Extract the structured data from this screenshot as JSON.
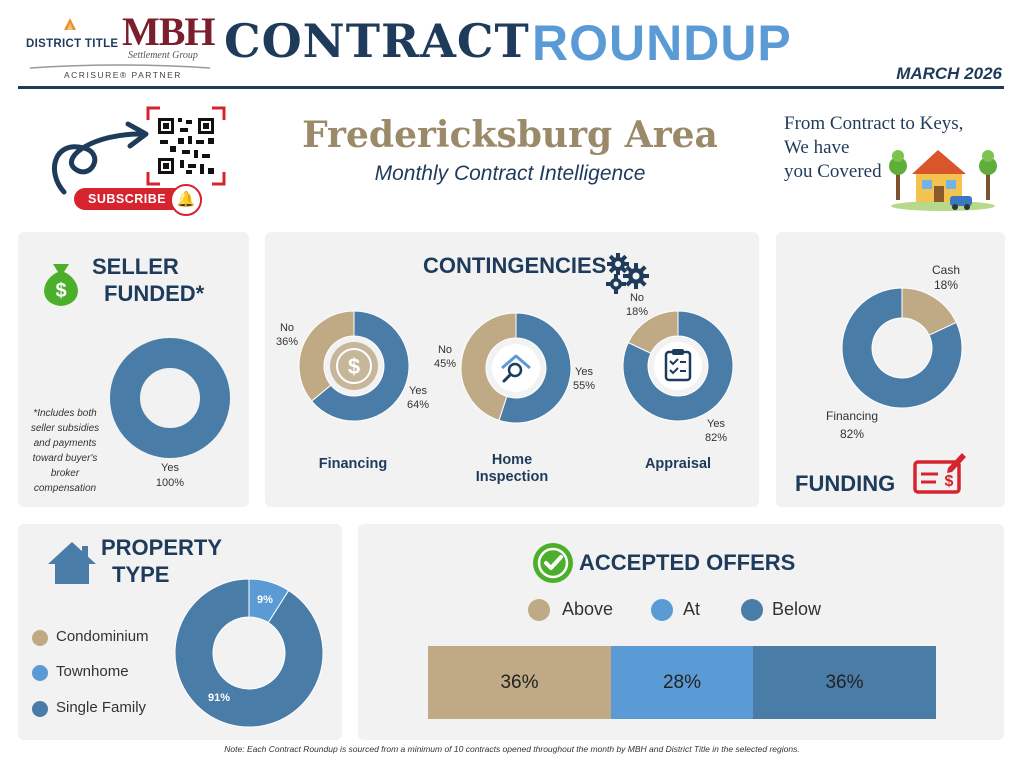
{
  "header": {
    "logo_district": "DISTRICT TITLE",
    "logo_mbh": "MBH",
    "logo_mbh_sub": "Settlement Group",
    "partner": "ACRISURE® PARTNER",
    "title_contract": "CONTRACT",
    "title_roundup": "ROUNDUP",
    "month": "MARCH 2026"
  },
  "intro": {
    "area": "Fredericksburg Area",
    "subtitle": "Monthly Contract Intelligence",
    "tagline_1": "From Contract to Keys,",
    "tagline_2": "We have",
    "tagline_3": "you Covered",
    "subscribe": "SUBSCRIBE"
  },
  "colors": {
    "navy": "#1f3b5b",
    "steel": "#4a7ca8",
    "sky": "#5b9bd5",
    "tan": "#bfaa85",
    "panel": "#f2f2f2",
    "green": "#4caf2c",
    "red": "#d6242f"
  },
  "icons": {
    "seller": "money-bag-icon",
    "contingencies": "gears-icon",
    "funding": "check-icon",
    "property": "house-icon",
    "offers": "check-circle-icon",
    "subscribe": "bell-icon",
    "qr": "qr-code-icon"
  },
  "seller": {
    "title_1": "SELLER",
    "title_2": "FUNDED*",
    "note": "*Includes both seller subsidies and payments toward buyer's broker compensation",
    "yes_label": "Yes",
    "yes_value": "100%"
  },
  "contingencies": {
    "title": "CONTINGENCIES",
    "financing": {
      "label": "Financing",
      "no": "No",
      "no_value": "36%",
      "yes": "Yes",
      "yes_value": "64%"
    },
    "inspection": {
      "label_1": "Home",
      "label_2": "Inspection",
      "no": "No",
      "no_value": "45%",
      "yes": "Yes",
      "yes_value": "55%"
    },
    "appraisal": {
      "label": "Appraisal",
      "no": "No",
      "no_value": "18%",
      "yes": "Yes",
      "yes_value": "82%"
    }
  },
  "funding": {
    "title": "FUNDING",
    "cash": "Cash",
    "cash_value": "18%",
    "financing": "Financing",
    "financing_value": "82%"
  },
  "property": {
    "title_1": "PROPERTY",
    "title_2": "TYPE",
    "legend": [
      "Condominium",
      "Townhome",
      "Single Family"
    ],
    "townhome_value": "9%",
    "single_value": "91%"
  },
  "offers": {
    "title": "ACCEPTED OFFERS",
    "legend": [
      "Above",
      "At",
      "Below"
    ],
    "values_text": [
      "36%",
      "28%",
      "36%"
    ]
  },
  "footnote": "Note: Each Contract Roundup is sourced from a minimum of 10 contracts opened throughout the month by MBH and District Title in the selected regions.",
  "chart_data": [
    {
      "type": "pie",
      "title": "SELLER FUNDED*",
      "categories": [
        "Yes"
      ],
      "values": [
        100
      ],
      "donut": true
    },
    {
      "type": "pie",
      "title": "Financing",
      "categories": [
        "Yes",
        "No"
      ],
      "values": [
        64,
        36
      ],
      "donut": true
    },
    {
      "type": "pie",
      "title": "Home Inspection",
      "categories": [
        "Yes",
        "No"
      ],
      "values": [
        55,
        45
      ],
      "donut": true
    },
    {
      "type": "pie",
      "title": "Appraisal",
      "categories": [
        "Yes",
        "No"
      ],
      "values": [
        82,
        18
      ],
      "donut": true
    },
    {
      "type": "pie",
      "title": "FUNDING",
      "categories": [
        "Cash",
        "Financing"
      ],
      "values": [
        18,
        82
      ],
      "donut": true
    },
    {
      "type": "pie",
      "title": "PROPERTY TYPE",
      "categories": [
        "Condominium",
        "Townhome",
        "Single Family"
      ],
      "values": [
        0,
        9,
        91
      ],
      "donut": true
    },
    {
      "type": "bar",
      "title": "ACCEPTED OFFERS",
      "stacked": true,
      "horizontal": true,
      "categories": [
        "Above",
        "At",
        "Below"
      ],
      "values": [
        36,
        28,
        36
      ]
    }
  ]
}
